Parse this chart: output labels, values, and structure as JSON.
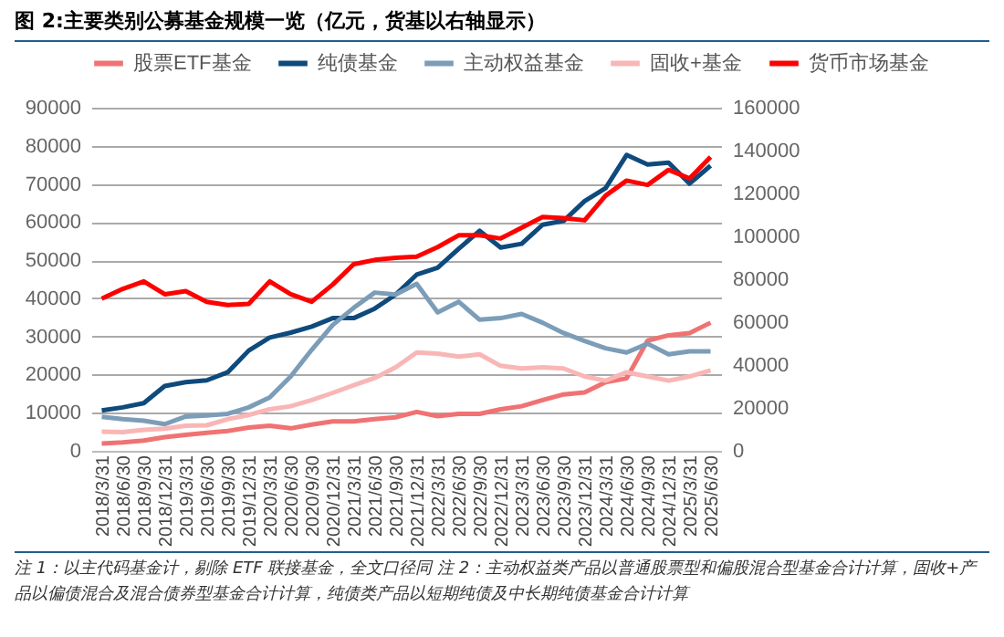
{
  "chart_data": {
    "type": "line",
    "title": "图 2:主要类别公募基金规模一览（亿元，货基以右轴显示）",
    "categories": [
      "2018/3/31",
      "2018/6/30",
      "2018/9/30",
      "2018/12/31",
      "2019/3/31",
      "2019/6/30",
      "2019/9/30",
      "2019/12/31",
      "2020/3/31",
      "2020/6/30",
      "2020/9/30",
      "2020/12/31",
      "2021/3/31",
      "2021/6/30",
      "2021/9/30",
      "2021/12/31",
      "2022/3/31",
      "2022/6/30",
      "2022/9/30",
      "2022/12/31",
      "2023/3/31",
      "2023/6/30",
      "2023/9/30",
      "2023/12/31",
      "2024/3/31",
      "2024/6/30",
      "2024/9/30",
      "2024/12/31",
      "2025/3/31",
      "2025/6/30"
    ],
    "series": [
      {
        "name": "股票ETF基金",
        "color": "#f07272",
        "values": [
          1900,
          2200,
          2700,
          3600,
          4200,
          4700,
          5200,
          6100,
          6600,
          5900,
          6900,
          7700,
          7700,
          8300,
          8800,
          10200,
          9100,
          9700,
          9700,
          10900,
          11700,
          13300,
          14800,
          15300,
          18000,
          19000,
          28900,
          30300,
          30900,
          33600
        ]
      },
      {
        "name": "纯债基金",
        "color": "#0e4a7c",
        "values": [
          10600,
          11400,
          12500,
          17000,
          18000,
          18500,
          20600,
          26300,
          29700,
          31000,
          32600,
          34800,
          34800,
          37300,
          41000,
          46200,
          48000,
          53000,
          57700,
          53300,
          54300,
          59300,
          60300,
          65500,
          68900,
          77600,
          75100,
          75600,
          70100,
          74800
        ]
      },
      {
        "name": "主动权益基金",
        "color": "#7c9db8",
        "values": [
          8900,
          8300,
          7900,
          7000,
          9000,
          9300,
          9700,
          11400,
          14000,
          19500,
          26500,
          33000,
          37500,
          41500,
          41000,
          43800,
          36300,
          39100,
          34400,
          34800,
          35900,
          33600,
          30900,
          28800,
          26900,
          25800,
          28100,
          25300,
          26100,
          26100
        ]
      },
      {
        "name": "固收+基金",
        "color": "#f9b6b6",
        "values": [
          5000,
          4900,
          5500,
          5800,
          6600,
          6700,
          8300,
          9400,
          10900,
          11700,
          13300,
          15200,
          17200,
          19100,
          21900,
          25800,
          25500,
          24700,
          25300,
          22300,
          21600,
          21900,
          21600,
          19500,
          18400,
          20600,
          19500,
          18400,
          19500,
          21100
        ]
      },
      {
        "name": "货币市场基金",
        "color": "#ff0000",
        "axis": "y2",
        "values": [
          71000,
          75500,
          79000,
          73000,
          74500,
          69500,
          68000,
          68500,
          79000,
          73000,
          69500,
          77500,
          87000,
          89000,
          90000,
          90500,
          95000,
          100500,
          100500,
          99000,
          104000,
          109000,
          108500,
          107500,
          119000,
          126000,
          124000,
          131000,
          127000,
          137000
        ]
      }
    ],
    "ylim": [
      0,
      90000
    ],
    "yticks": [
      0,
      10000,
      20000,
      30000,
      40000,
      50000,
      60000,
      70000,
      80000,
      90000
    ],
    "y2lim": [
      0,
      160000
    ],
    "y2ticks": [
      0,
      20000,
      40000,
      60000,
      80000,
      100000,
      120000,
      140000,
      160000
    ],
    "grid": "y",
    "legend": "top",
    "annotations": [
      "注 1：以主代码基金计，剔除 ETF 联接基金，全文口径同 注 2：主动权益类产品以普通股票型和偏股混合型基金合计计算，固收+产品以偏债混合及混合债券型基金合计计算，纯债类产品以短期纯债及中长期纯债基金合计计算"
    ]
  }
}
